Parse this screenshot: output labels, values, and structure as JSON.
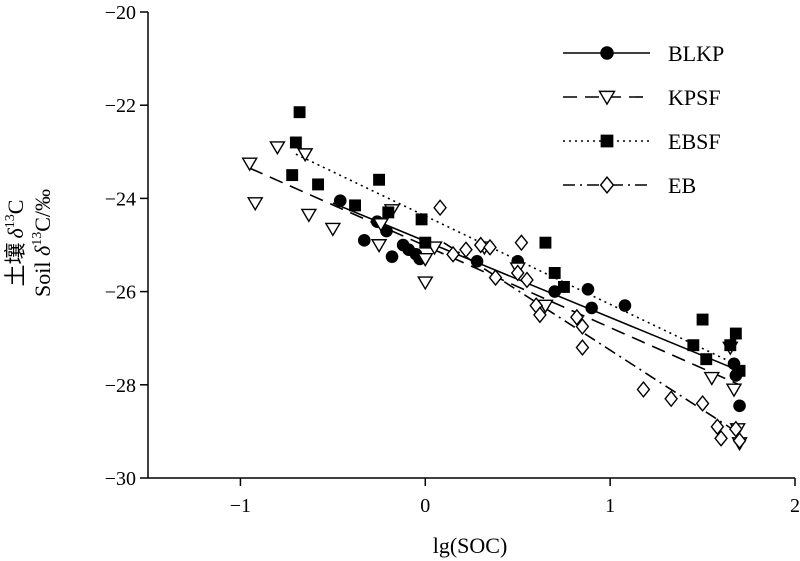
{
  "chart_data": {
    "type": "scatter",
    "xlabel": "lg(SOC)",
    "ylabel_lines": [
      "土壤 δ¹³C",
      "Soil δ¹³C/‰"
    ],
    "xlim": [
      -1.5,
      2
    ],
    "ylim": [
      -30,
      -20
    ],
    "x_ticks": [
      "−1",
      "0",
      "1",
      "2"
    ],
    "x_tick_values": [
      -1,
      0,
      1,
      2
    ],
    "y_ticks": [
      "−20",
      "−22",
      "−24",
      "−26",
      "−28",
      "−30"
    ],
    "y_tick_values": [
      -20,
      -22,
      -24,
      -26,
      -28,
      -30
    ],
    "grid": false,
    "legend_position": "top-right",
    "series": [
      {
        "name": "BLKP",
        "marker": "circle-filled",
        "line": "solid",
        "points": [
          [
            -0.46,
            -24.05
          ],
          [
            -0.33,
            -24.9
          ],
          [
            -0.26,
            -24.5
          ],
          [
            -0.21,
            -24.7
          ],
          [
            -0.18,
            -25.25
          ],
          [
            -0.12,
            -25.0
          ],
          [
            -0.09,
            -25.1
          ],
          [
            -0.05,
            -25.2
          ],
          [
            -0.03,
            -25.3
          ],
          [
            0.28,
            -25.35
          ],
          [
            0.5,
            -25.35
          ],
          [
            0.7,
            -26.0
          ],
          [
            0.88,
            -25.95
          ],
          [
            0.9,
            -26.35
          ],
          [
            1.08,
            -26.3
          ],
          [
            1.67,
            -27.55
          ],
          [
            1.68,
            -27.8
          ],
          [
            1.7,
            -28.45
          ]
        ],
        "fit": [
          [
            -0.5,
            -24.1
          ],
          [
            1.7,
            -27.7
          ]
        ]
      },
      {
        "name": "KPSF",
        "marker": "triangle-down-open",
        "line": "dashed",
        "points": [
          [
            -0.95,
            -23.25
          ],
          [
            -0.92,
            -24.1
          ],
          [
            -0.8,
            -22.9
          ],
          [
            -0.65,
            -23.05
          ],
          [
            -0.63,
            -24.35
          ],
          [
            -0.5,
            -24.65
          ],
          [
            -0.25,
            -25.0
          ],
          [
            -0.24,
            -24.55
          ],
          [
            -0.18,
            -24.25
          ],
          [
            0.0,
            -25.3
          ],
          [
            0.0,
            -25.8
          ],
          [
            0.05,
            -25.05
          ],
          [
            0.32,
            -25.05
          ],
          [
            0.5,
            -25.5
          ],
          [
            0.65,
            -26.3
          ],
          [
            1.55,
            -27.85
          ],
          [
            1.65,
            -27.2
          ],
          [
            1.67,
            -28.1
          ],
          [
            1.69,
            -28.95
          ],
          [
            1.7,
            -29.25
          ]
        ],
        "fit": [
          [
            -0.95,
            -23.35
          ],
          [
            1.7,
            -28.0
          ]
        ]
      },
      {
        "name": "EBSF",
        "marker": "square-filled",
        "line": "dotted",
        "points": [
          [
            -0.68,
            -22.15
          ],
          [
            -0.7,
            -22.8
          ],
          [
            -0.72,
            -23.5
          ],
          [
            -0.58,
            -23.7
          ],
          [
            -0.38,
            -24.15
          ],
          [
            -0.25,
            -23.6
          ],
          [
            -0.2,
            -24.3
          ],
          [
            -0.02,
            -24.45
          ],
          [
            0.0,
            -24.95
          ],
          [
            0.65,
            -24.95
          ],
          [
            0.7,
            -25.6
          ],
          [
            0.75,
            -25.9
          ],
          [
            1.45,
            -27.15
          ],
          [
            1.5,
            -26.6
          ],
          [
            1.52,
            -27.45
          ],
          [
            1.65,
            -27.15
          ],
          [
            1.68,
            -26.9
          ],
          [
            1.7,
            -27.7
          ]
        ],
        "fit": [
          [
            -0.7,
            -23.05
          ],
          [
            1.7,
            -27.6
          ]
        ]
      },
      {
        "name": "EB",
        "marker": "diamond-open",
        "line": "dashdot",
        "points": [
          [
            0.08,
            -24.2
          ],
          [
            0.15,
            -25.2
          ],
          [
            0.22,
            -25.1
          ],
          [
            0.3,
            -25.0
          ],
          [
            0.35,
            -25.05
          ],
          [
            0.38,
            -25.7
          ],
          [
            0.5,
            -25.6
          ],
          [
            0.52,
            -24.95
          ],
          [
            0.55,
            -25.75
          ],
          [
            0.6,
            -26.3
          ],
          [
            0.62,
            -26.5
          ],
          [
            0.82,
            -26.55
          ],
          [
            0.85,
            -26.75
          ],
          [
            0.85,
            -27.2
          ],
          [
            1.18,
            -28.1
          ],
          [
            1.33,
            -28.3
          ],
          [
            1.5,
            -28.4
          ],
          [
            1.58,
            -28.9
          ],
          [
            1.6,
            -29.15
          ],
          [
            1.68,
            -28.95
          ],
          [
            1.7,
            -29.2
          ]
        ],
        "fit": [
          [
            0.1,
            -24.95
          ],
          [
            1.7,
            -29.05
          ]
        ]
      }
    ]
  }
}
